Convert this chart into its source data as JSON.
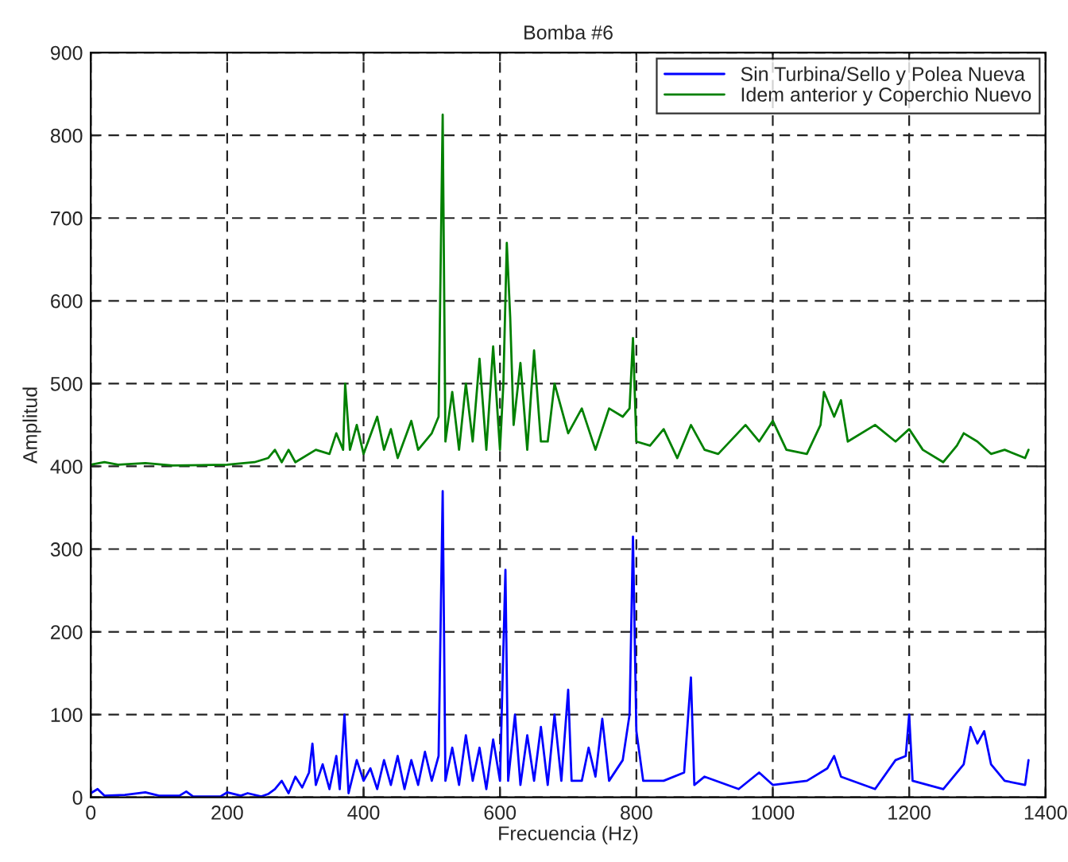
{
  "chart_data": {
    "type": "line",
    "title": "Bomba #6",
    "xlabel": "Frecuencia (Hz)",
    "ylabel": "Amplitud",
    "xlim": [
      0,
      1400
    ],
    "xticks": [
      0,
      200,
      400,
      600,
      800,
      1000,
      1200,
      1400
    ],
    "ylim": [
      0,
      900
    ],
    "yticks": [
      0,
      100,
      200,
      300,
      400,
      500,
      600,
      700,
      800,
      900
    ],
    "grid": true,
    "legend": "top right",
    "line_style": "solid",
    "series": [
      {
        "name": "Sin Turbina/Sello y Polea Nueva",
        "color": "#0000ff",
        "x": [
          0,
          10,
          20,
          50,
          80,
          100,
          130,
          140,
          150,
          190,
          200,
          220,
          230,
          250,
          260,
          270,
          280,
          290,
          300,
          310,
          320,
          325,
          330,
          340,
          350,
          360,
          365,
          372,
          378,
          390,
          400,
          410,
          420,
          430,
          440,
          450,
          460,
          470,
          480,
          490,
          500,
          510,
          516,
          520,
          530,
          540,
          550,
          560,
          570,
          580,
          590,
          600,
          608,
          612,
          622,
          630,
          640,
          650,
          660,
          670,
          680,
          690,
          700,
          705,
          720,
          730,
          740,
          750,
          760,
          780,
          790,
          795,
          800,
          810,
          840,
          870,
          880,
          885,
          900,
          950,
          980,
          1000,
          1050,
          1080,
          1090,
          1100,
          1150,
          1180,
          1195,
          1200,
          1205,
          1250,
          1280,
          1290,
          1300,
          1310,
          1320,
          1340,
          1370,
          1375
        ],
        "values": [
          5,
          10,
          2,
          3,
          6,
          2,
          2,
          7,
          1,
          1,
          6,
          2,
          5,
          1,
          4,
          10,
          20,
          5,
          25,
          12,
          30,
          65,
          15,
          40,
          10,
          50,
          10,
          100,
          5,
          45,
          20,
          35,
          10,
          45,
          15,
          50,
          10,
          45,
          15,
          55,
          20,
          50,
          370,
          20,
          60,
          15,
          75,
          20,
          60,
          10,
          70,
          20,
          275,
          20,
          100,
          15,
          75,
          20,
          85,
          15,
          100,
          20,
          130,
          20,
          20,
          60,
          25,
          95,
          20,
          45,
          100,
          315,
          80,
          20,
          20,
          30,
          145,
          15,
          25,
          10,
          30,
          15,
          20,
          35,
          50,
          25,
          10,
          45,
          50,
          100,
          20,
          10,
          40,
          85,
          65,
          80,
          40,
          20,
          15,
          45
        ]
      },
      {
        "name": "Idem anterior y Coperchio Nuevo",
        "color": "#008000",
        "x": [
          0,
          20,
          40,
          80,
          120,
          200,
          240,
          260,
          270,
          280,
          290,
          300,
          330,
          350,
          360,
          370,
          373,
          380,
          390,
          400,
          420,
          430,
          440,
          450,
          470,
          480,
          500,
          510,
          516,
          520,
          530,
          540,
          550,
          560,
          570,
          580,
          590,
          600,
          605,
          610,
          615,
          620,
          630,
          640,
          650,
          660,
          670,
          680,
          700,
          720,
          740,
          760,
          780,
          790,
          795,
          800,
          820,
          840,
          860,
          880,
          900,
          920,
          960,
          980,
          1000,
          1020,
          1050,
          1070,
          1075,
          1090,
          1100,
          1110,
          1150,
          1180,
          1200,
          1220,
          1250,
          1270,
          1280,
          1300,
          1320,
          1340,
          1370,
          1375
        ],
        "values": [
          402,
          405,
          402,
          404,
          401,
          402,
          405,
          410,
          420,
          405,
          420,
          405,
          420,
          415,
          440,
          420,
          500,
          420,
          450,
          415,
          460,
          420,
          445,
          410,
          455,
          420,
          440,
          460,
          825,
          430,
          490,
          420,
          500,
          430,
          530,
          420,
          545,
          420,
          500,
          670,
          580,
          450,
          525,
          420,
          540,
          430,
          430,
          500,
          440,
          470,
          420,
          470,
          460,
          470,
          555,
          430,
          425,
          445,
          410,
          450,
          420,
          415,
          450,
          430,
          455,
          420,
          415,
          450,
          490,
          460,
          480,
          430,
          450,
          430,
          445,
          420,
          405,
          425,
          440,
          430,
          415,
          420,
          410,
          420
        ]
      }
    ]
  }
}
